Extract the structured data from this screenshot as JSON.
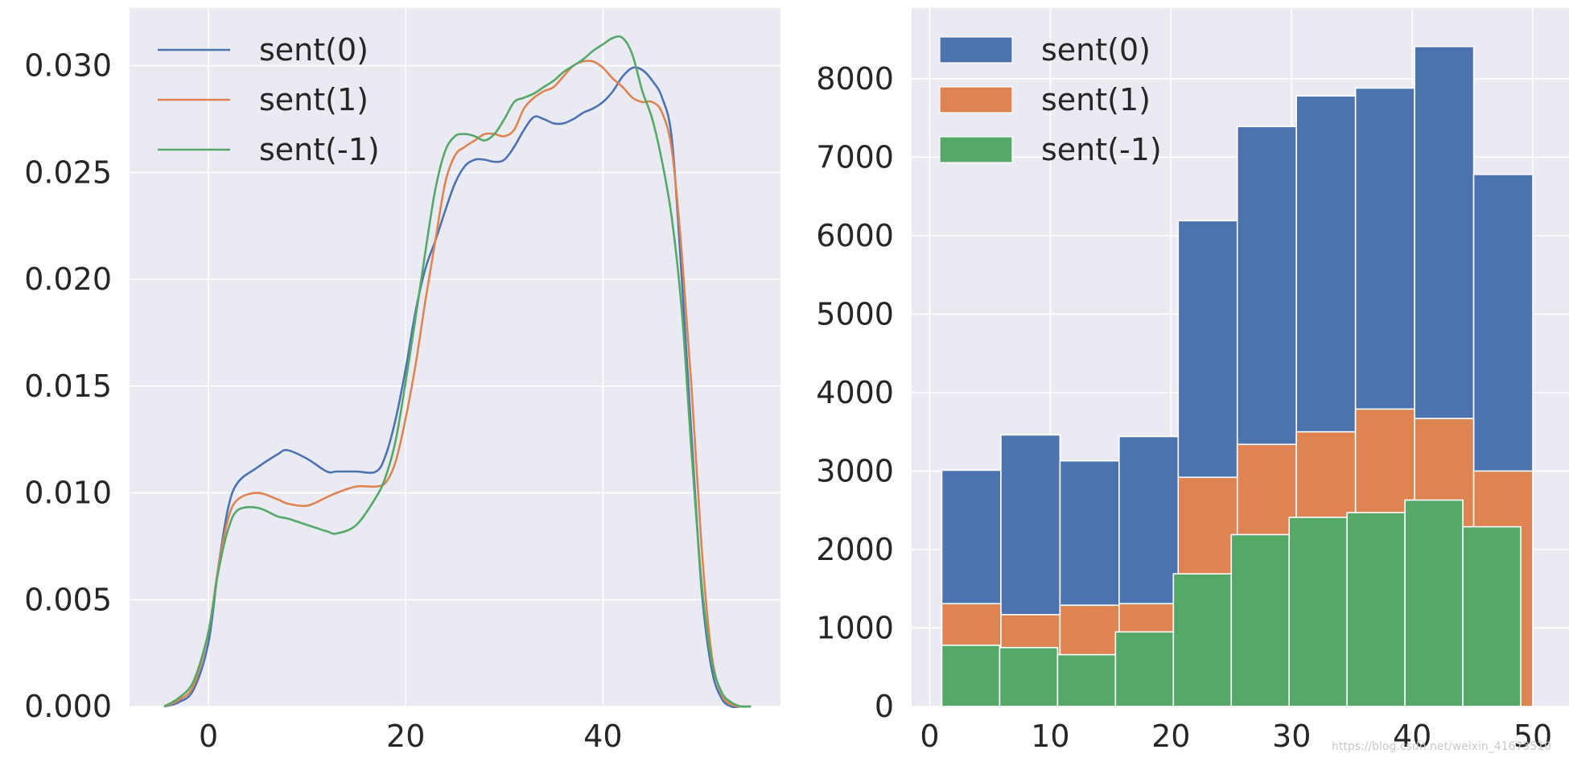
{
  "watermark": "https://blog.csdn.net/weixin_41673510",
  "chart_data": [
    {
      "type": "line",
      "title": "",
      "xlabel": "",
      "ylabel": "",
      "xlim": [
        -8,
        58
      ],
      "ylim": [
        0,
        0.0327
      ],
      "xticks": [
        0,
        20,
        40
      ],
      "xtick_labels": [
        "0",
        "20",
        "40"
      ],
      "yticks": [
        0,
        0.005,
        0.01,
        0.015,
        0.02,
        0.025,
        0.03
      ],
      "ytick_labels": [
        "0.000",
        "0.005",
        "0.010",
        "0.015",
        "0.020",
        "0.025",
        "0.030"
      ],
      "grid": true,
      "legend_position": "top-left",
      "colors": [
        "#4c72b0",
        "#dd8452",
        "#55a868"
      ],
      "series": [
        {
          "name": "sent(0)",
          "x": [
            -4.5,
            -3,
            -1.5,
            0,
            1,
            2,
            3,
            5,
            7,
            8,
            10,
            12,
            13,
            15,
            17,
            18,
            19,
            20,
            21,
            22,
            23,
            24,
            25,
            26,
            27,
            28,
            29,
            30,
            31,
            32,
            33,
            34,
            35,
            36,
            37,
            38,
            39,
            40,
            41,
            42,
            43,
            44,
            45,
            46,
            47,
            48,
            49,
            50,
            51,
            52,
            53,
            54,
            55
          ],
          "y": [
            0,
            0.0002,
            0.0008,
            0.003,
            0.0065,
            0.0093,
            0.0105,
            0.0112,
            0.0118,
            0.012,
            0.0116,
            0.011,
            0.011,
            0.011,
            0.011,
            0.0118,
            0.0135,
            0.0158,
            0.0185,
            0.0205,
            0.0218,
            0.0232,
            0.0245,
            0.0253,
            0.0256,
            0.0256,
            0.0255,
            0.0256,
            0.0262,
            0.027,
            0.0276,
            0.0275,
            0.0273,
            0.0273,
            0.0275,
            0.0278,
            0.028,
            0.0283,
            0.0288,
            0.0295,
            0.0299,
            0.0298,
            0.0293,
            0.0285,
            0.0265,
            0.02,
            0.0125,
            0.0055,
            0.0018,
            0.0004,
            0,
            0,
            0
          ]
        },
        {
          "name": "sent(1)",
          "x": [
            -4.5,
            -3,
            -1.5,
            0,
            1,
            2,
            3,
            5,
            7,
            8,
            10,
            12,
            13,
            15,
            17,
            18,
            19,
            20,
            21,
            22,
            23,
            24,
            25,
            26,
            27,
            28,
            29,
            30,
            31,
            32,
            33,
            34,
            35,
            36,
            37,
            38,
            39,
            40,
            41,
            42,
            43,
            44,
            45,
            46,
            47,
            48,
            49,
            50,
            51,
            52,
            53,
            54,
            55
          ],
          "y": [
            0,
            0.0003,
            0.001,
            0.0035,
            0.0065,
            0.0088,
            0.0097,
            0.01,
            0.0097,
            0.0095,
            0.0094,
            0.0098,
            0.01,
            0.0103,
            0.0103,
            0.0105,
            0.0115,
            0.0135,
            0.016,
            0.019,
            0.0218,
            0.0245,
            0.0258,
            0.0262,
            0.0265,
            0.0268,
            0.0268,
            0.0267,
            0.027,
            0.028,
            0.0285,
            0.0288,
            0.029,
            0.0295,
            0.03,
            0.0302,
            0.0302,
            0.0299,
            0.0294,
            0.029,
            0.0285,
            0.0283,
            0.0283,
            0.0278,
            0.026,
            0.0212,
            0.0148,
            0.0075,
            0.0025,
            0.0006,
            0.0001,
            0,
            0
          ]
        },
        {
          "name": "sent(-1)",
          "x": [
            -4.5,
            -3,
            -1.5,
            0,
            1,
            2,
            3,
            5,
            7,
            8,
            10,
            12,
            13,
            15,
            17,
            18,
            19,
            20,
            21,
            22,
            23,
            24,
            25,
            26,
            27,
            28,
            29,
            30,
            31,
            32,
            33,
            34,
            35,
            36,
            37,
            38,
            39,
            40,
            41,
            42,
            43,
            44,
            45,
            46,
            47,
            48,
            49,
            50,
            51,
            52,
            53,
            54,
            55
          ],
          "y": [
            0,
            0.0004,
            0.0012,
            0.0035,
            0.0063,
            0.0083,
            0.0092,
            0.0093,
            0.0089,
            0.0088,
            0.0085,
            0.0082,
            0.0081,
            0.0085,
            0.0098,
            0.0108,
            0.0125,
            0.0152,
            0.0182,
            0.0213,
            0.0242,
            0.026,
            0.0267,
            0.0268,
            0.0267,
            0.0265,
            0.0268,
            0.0275,
            0.0283,
            0.0285,
            0.0287,
            0.029,
            0.0293,
            0.0297,
            0.03,
            0.0303,
            0.0307,
            0.031,
            0.0313,
            0.0313,
            0.0305,
            0.0288,
            0.0275,
            0.0255,
            0.0228,
            0.0185,
            0.0118,
            0.0058,
            0.0022,
            0.0007,
            0.0002,
            0,
            0
          ]
        }
      ]
    },
    {
      "type": "bar",
      "title": "",
      "xlabel": "",
      "ylabel": "",
      "xlim": [
        -1.5,
        53
      ],
      "ylim": [
        0,
        8900
      ],
      "xticks": [
        0,
        10,
        20,
        30,
        40,
        50
      ],
      "xtick_labels": [
        "0",
        "10",
        "20",
        "30",
        "40",
        "50"
      ],
      "yticks": [
        0,
        1000,
        2000,
        3000,
        4000,
        5000,
        6000,
        7000,
        8000
      ],
      "ytick_labels": [
        "0",
        "1000",
        "2000",
        "3000",
        "4000",
        "5000",
        "6000",
        "7000",
        "8000"
      ],
      "grid": true,
      "legend_position": "top-left",
      "colors": [
        "#4c72b0",
        "#dd8452",
        "#55a868"
      ],
      "series": [
        {
          "name": "sent(0)",
          "bin_edges": [
            1,
            5.9,
            10.8,
            15.7,
            20.6,
            25.5,
            30.4,
            35.3,
            40.2,
            45.1,
            50
          ],
          "values": [
            3010,
            3460,
            3130,
            3440,
            6190,
            7390,
            7780,
            7880,
            8410,
            6780
          ]
        },
        {
          "name": "sent(1)",
          "bin_edges": [
            1,
            5.9,
            10.8,
            15.7,
            20.6,
            25.5,
            30.4,
            35.3,
            40.2,
            45.1,
            50
          ],
          "values": [
            1310,
            1170,
            1290,
            1310,
            2920,
            3340,
            3500,
            3790,
            3670,
            3000
          ]
        },
        {
          "name": "sent(-1)",
          "bin_edges": [
            1,
            5.8,
            10.6,
            15.4,
            20.2,
            25,
            29.8,
            34.6,
            39.4,
            44.2,
            49
          ],
          "values": [
            780,
            750,
            660,
            950,
            1690,
            2190,
            2410,
            2470,
            2630,
            2290
          ]
        }
      ]
    }
  ]
}
